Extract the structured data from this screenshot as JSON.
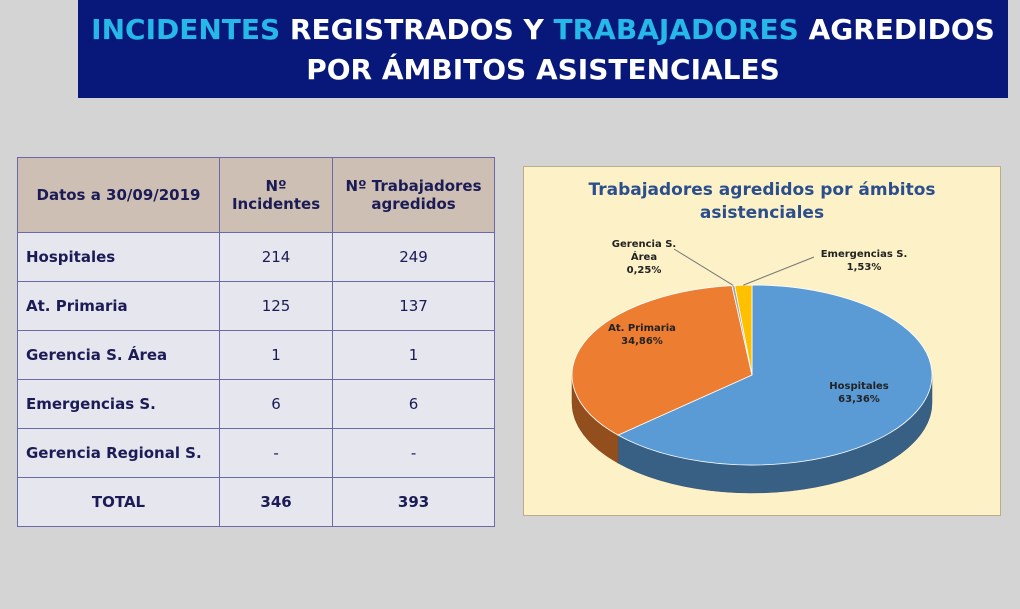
{
  "header": {
    "line1_part1": "INCIDENTES",
    "line1_part2": " REGISTRADOS Y ",
    "line1_part3": "TRABAJADORES",
    "line1_part4": " AGREDIDOS",
    "line2": "POR ÁMBITOS ASISTENCIALES"
  },
  "table": {
    "headers": [
      "Datos a 30/09/2019",
      "Nº Incidentes",
      "Nº Trabajadores agredidos"
    ],
    "rows": [
      {
        "label": "Hospitales",
        "incidentes": "214",
        "trabajadores": "249"
      },
      {
        "label": "At. Primaria",
        "incidentes": "125",
        "trabajadores": "137"
      },
      {
        "label": "Gerencia S. Área",
        "incidentes": "1",
        "trabajadores": "1"
      },
      {
        "label": "Emergencias S.",
        "incidentes": "6",
        "trabajadores": "6"
      },
      {
        "label": "Gerencia Regional S.",
        "incidentes": "-",
        "trabajadores": "-"
      }
    ],
    "total": {
      "label": "TOTAL",
      "incidentes": "346",
      "trabajadores": "393"
    }
  },
  "chart_data": {
    "type": "pie",
    "title_line1": "Trabajadores agredidos por ámbitos",
    "title_line2": "asistenciales",
    "slices": [
      {
        "label": "Hospitales",
        "value": 63.36,
        "text": "63,36%",
        "color": "#5b9bd5"
      },
      {
        "label": "At. Primaria",
        "value": 34.86,
        "text": "34,86%",
        "color": "#ed7d31"
      },
      {
        "label": "Gerencia S. Área",
        "value": 0.25,
        "text": "0,25%",
        "color": "#a5a5a5"
      },
      {
        "label": "Emergencias S.",
        "value": 1.53,
        "text": "1,53%",
        "color": "#ffc000"
      }
    ]
  }
}
